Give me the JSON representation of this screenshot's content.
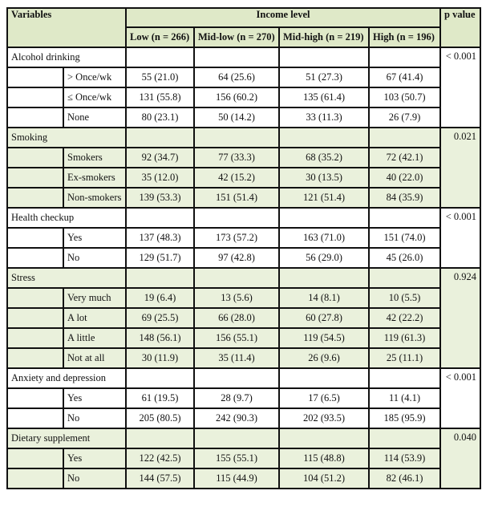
{
  "header": {
    "variables": "Variables",
    "income_level": "Income level",
    "p_value": "p value",
    "columns": [
      "Low (n = 266)",
      "Mid-low (n = 270)",
      "Mid-high (n = 219)",
      "High (n = 196)"
    ]
  },
  "colors": {
    "header_bg": "#dfe9c8",
    "alt_group_bg": "#eaf1dc",
    "border": "#111111"
  },
  "groups": [
    {
      "label": "Alcohol drinking",
      "p": "< 0.001",
      "shaded": false,
      "rows": [
        {
          "label": "> Once/wk",
          "values": [
            "55 (21.0)",
            "64 (25.6)",
            "51 (27.3)",
            "67 (41.4)"
          ]
        },
        {
          "label": "≤  Once/wk",
          "values": [
            "131 (55.8)",
            "156 (60.2)",
            "135 (61.4)",
            "103 (50.7)"
          ]
        },
        {
          "label": "None",
          "values": [
            "80 (23.1)",
            "50 (14.2)",
            "33 (11.3)",
            "26 (7.9)"
          ]
        }
      ]
    },
    {
      "label": "Smoking",
      "p": "0.021",
      "shaded": true,
      "rows": [
        {
          "label": "Smokers",
          "values": [
            "92 (34.7)",
            "77 (33.3)",
            "68 (35.2)",
            "72 (42.1)"
          ]
        },
        {
          "label": "Ex-smokers",
          "values": [
            "35 (12.0)",
            "42 (15.2)",
            "30 (13.5)",
            "40 (22.0)"
          ]
        },
        {
          "label": "Non-smokers",
          "values": [
            "139 (53.3)",
            "151 (51.4)",
            "121 (51.4)",
            "84 (35.9)"
          ]
        }
      ]
    },
    {
      "label": "Health checkup",
      "p": "< 0.001",
      "shaded": false,
      "rows": [
        {
          "label": "Yes",
          "values": [
            "137 (48.3)",
            "173 (57.2)",
            "163 (71.0)",
            "151 (74.0)"
          ]
        },
        {
          "label": "No",
          "values": [
            "129 (51.7)",
            "97 (42.8)",
            "56 (29.0)",
            "45 (26.0)"
          ]
        }
      ]
    },
    {
      "label": "Stress",
      "p": "0.924",
      "shaded": true,
      "rows": [
        {
          "label": "Very much",
          "values": [
            "19 (6.4)",
            "13 (5.6)",
            "14 (8.1)",
            "10 (5.5)"
          ]
        },
        {
          "label": "A lot",
          "values": [
            "69 (25.5)",
            "66 (28.0)",
            "60 (27.8)",
            "42 (22.2)"
          ]
        },
        {
          "label": "A little",
          "values": [
            "148 (56.1)",
            "156 (55.1)",
            "119 (54.5)",
            "119 (61.3)"
          ]
        },
        {
          "label": "Not at all",
          "values": [
            "30 (11.9)",
            "35 (11.4)",
            "26 (9.6)",
            "25 (11.1)"
          ]
        }
      ]
    },
    {
      "label": "Anxiety and depression",
      "p": "< 0.001",
      "shaded": false,
      "rows": [
        {
          "label": "Yes",
          "values": [
            "61 (19.5)",
            "28 (9.7)",
            "17 (6.5)",
            "11 (4.1)"
          ]
        },
        {
          "label": "No",
          "values": [
            "205 (80.5)",
            "242 (90.3)",
            "202 (93.5)",
            "185 (95.9)"
          ]
        }
      ]
    },
    {
      "label": "Dietary supplement",
      "p": "0.040",
      "shaded": true,
      "rows": [
        {
          "label": "Yes",
          "values": [
            "122 (42.5)",
            "155 (55.1)",
            "115 (48.8)",
            "114 (53.9)"
          ]
        },
        {
          "label": "No",
          "values": [
            "144 (57.5)",
            "115 (44.9)",
            "104 (51.2)",
            "82 (46.1)"
          ]
        }
      ]
    }
  ]
}
